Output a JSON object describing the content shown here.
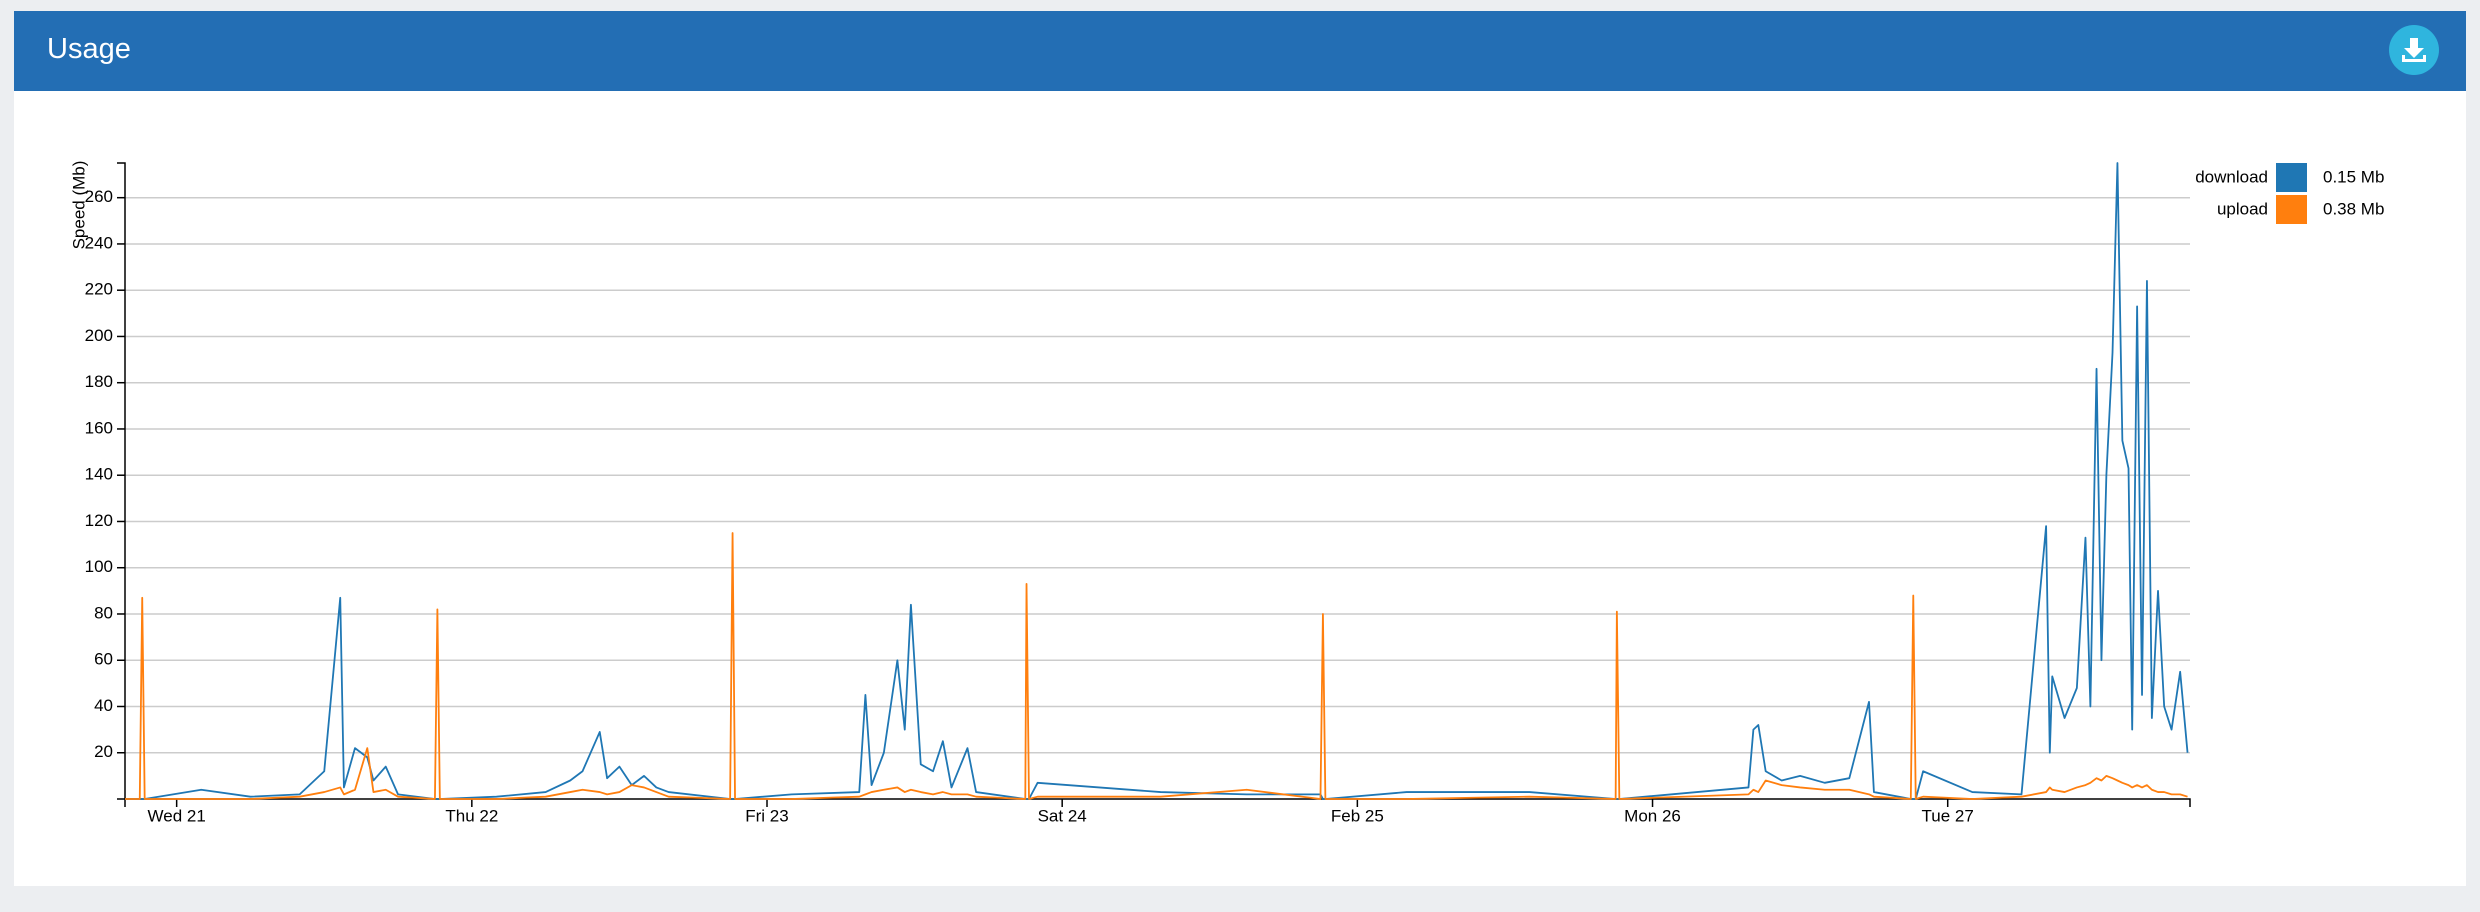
{
  "header": {
    "title": "Usage"
  },
  "chart_data": {
    "type": "line",
    "y_label": "Speed (Mb)",
    "xlim": [
      -4.2,
      163.7
    ],
    "xticks": [
      {
        "value": 0,
        "label": "Wed 21"
      },
      {
        "value": 24,
        "label": "Thu 22"
      },
      {
        "value": 48,
        "label": "Fri 23"
      },
      {
        "value": 72,
        "label": "Sat 24"
      },
      {
        "value": 96,
        "label": "Feb 25"
      },
      {
        "value": 120,
        "label": "Mon 26"
      },
      {
        "value": 144,
        "label": "Tue 27"
      }
    ],
    "ylim": [
      0,
      275
    ],
    "yticks": [
      20,
      40,
      60,
      80,
      100,
      120,
      140,
      160,
      180,
      200,
      220,
      240,
      260
    ],
    "grid": true,
    "legend": "right",
    "x": [
      -4.2,
      -3,
      -2.8,
      -2.6,
      2,
      6,
      10,
      12,
      13.3,
      13.6,
      14.5,
      15.5,
      16,
      17,
      18,
      21,
      21.2,
      21.4,
      26,
      30,
      32,
      33,
      34.4,
      35,
      36,
      37,
      38,
      39,
      40,
      45,
      45.2,
      45.4,
      50,
      55.5,
      56,
      56.5,
      57.5,
      58.6,
      59.2,
      59.7,
      60.5,
      61.5,
      62.3,
      63,
      64.3,
      65,
      69,
      69.1,
      69.3,
      70,
      80,
      87,
      93,
      93.2,
      93.4,
      100,
      110,
      117,
      117.1,
      117.3,
      127.8,
      128.2,
      128.6,
      129.2,
      130.5,
      132,
      134,
      136,
      137.6,
      138,
      141,
      141.2,
      141.4,
      142,
      146,
      150,
      152,
      152.3,
      152.5,
      153.5,
      154.5,
      155.2,
      155.6,
      156.1,
      156.5,
      156.9,
      157.4,
      157.8,
      158.2,
      158.7,
      159,
      159.4,
      159.8,
      160.2,
      160.6,
      161.1,
      161.6,
      162.2,
      162.9,
      163.5
    ],
    "series": [
      {
        "name": "download",
        "legend_value": "0.15 Mb",
        "color": "#1f77b4",
        "values": [
          0,
          0,
          0,
          0,
          4,
          1,
          2,
          12,
          87,
          5,
          22,
          18,
          8,
          14,
          2,
          0,
          0,
          0,
          1,
          3,
          8,
          12,
          29,
          9,
          14,
          6,
          10,
          5,
          3,
          0,
          0,
          0,
          2,
          3,
          45,
          6,
          20,
          60,
          30,
          84,
          15,
          12,
          25,
          5,
          22,
          3,
          0,
          0,
          0,
          7,
          3,
          2,
          2,
          0,
          0,
          3,
          3,
          0,
          0,
          0,
          5,
          30,
          32,
          12,
          8,
          10,
          7,
          9,
          42,
          3,
          0,
          0,
          0,
          12,
          3,
          2,
          118,
          20,
          53,
          35,
          48,
          113,
          40,
          186,
          60,
          140,
          193,
          275,
          155,
          143,
          30,
          213,
          45,
          224,
          35,
          90,
          40,
          30,
          55,
          20
        ]
      },
      {
        "name": "upload",
        "legend_value": "0.38 Mb",
        "color": "#ff7f0e",
        "values": [
          0,
          0,
          87,
          0,
          0,
          0,
          1,
          3,
          5,
          2,
          4,
          22,
          3,
          4,
          1,
          0,
          82,
          0,
          0,
          1,
          3,
          4,
          3,
          2,
          3,
          6,
          5,
          3,
          1,
          0,
          115,
          0,
          0,
          1,
          2,
          3,
          4,
          5,
          3,
          4,
          3,
          2,
          3,
          2,
          2,
          1,
          0,
          93,
          0,
          1,
          1,
          4,
          0,
          80,
          0,
          0,
          1,
          0,
          81,
          0,
          2,
          4,
          3,
          8,
          6,
          5,
          4,
          4,
          2,
          1,
          0,
          88,
          0,
          1,
          0,
          1,
          3,
          5,
          4,
          3,
          5,
          6,
          7,
          9,
          8,
          10,
          9,
          8,
          7,
          6,
          5,
          6,
          5,
          6,
          4,
          3,
          3,
          2,
          2,
          1
        ]
      }
    ]
  }
}
